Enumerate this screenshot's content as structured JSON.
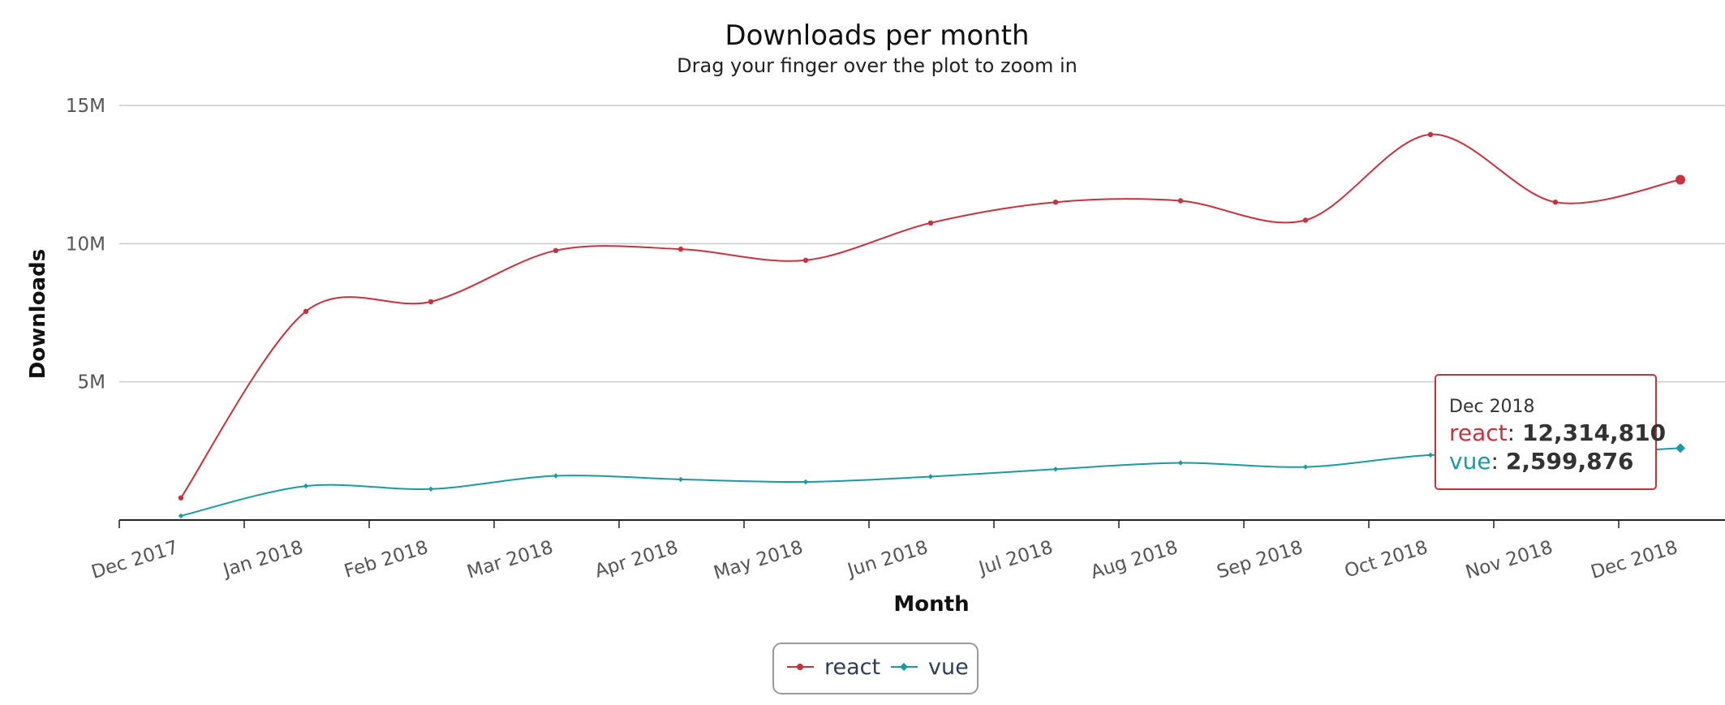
{
  "chart_data": {
    "type": "line",
    "title": "Downloads per month",
    "subtitle": "Drag your finger over the plot to zoom in",
    "xlabel": "Month",
    "ylabel": "Downloads",
    "x": [
      "Dec 2017",
      "Jan 2018",
      "Feb 2018",
      "Mar 2018",
      "Apr 2018",
      "May 2018",
      "Jun 2018",
      "Jul 2018",
      "Aug 2018",
      "Sep 2018",
      "Oct 2018",
      "Nov 2018",
      "Dec 2018"
    ],
    "ylim": [
      0,
      15000000
    ],
    "yticks": [
      5000000,
      10000000,
      15000000
    ],
    "ytick_labels": [
      "5M",
      "10M",
      "15M"
    ],
    "grid": true,
    "legend_position": "bottom-center",
    "series": [
      {
        "name": "react",
        "color": "#c9313f",
        "values": [
          800000,
          7550000,
          7900000,
          9750000,
          9800000,
          9400000,
          10750000,
          11500000,
          11550000,
          10850000,
          13950000,
          11500000,
          12314810
        ]
      },
      {
        "name": "vue",
        "color": "#1a9ba1",
        "values": [
          150000,
          1230000,
          1120000,
          1600000,
          1470000,
          1380000,
          1570000,
          1840000,
          2070000,
          1920000,
          2350000,
          2380000,
          2599876
        ]
      }
    ],
    "tooltip": {
      "date": "Dec 2018",
      "rows": [
        {
          "name": "react",
          "value": "12,314,810",
          "color": "#c9313f"
        },
        {
          "name": "vue",
          "value": "2,599,876",
          "color": "#1a9ba1"
        }
      ]
    }
  }
}
